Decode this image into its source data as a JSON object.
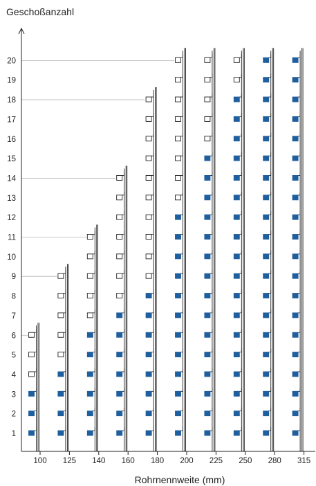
{
  "chart_data": {
    "type": "scatter",
    "ylabel": "Geschoßanzahl",
    "xlabel": "Rohrnennweite (mm)",
    "categories": [
      "100",
      "125",
      "140",
      "160",
      "180",
      "200",
      "225",
      "250",
      "280",
      "315"
    ],
    "y_ticks": [
      "1",
      "2",
      "3",
      "4",
      "5",
      "6",
      "7",
      "8",
      "9",
      "10",
      "11",
      "12",
      "13",
      "14",
      "15",
      "16",
      "17",
      "18",
      "19",
      "20"
    ],
    "ylim": [
      0,
      21
    ],
    "max_floors": [
      6,
      9,
      11,
      14,
      18,
      20,
      20,
      20,
      20,
      20
    ],
    "filled_up_to_floor": [
      3,
      4,
      6,
      7,
      8,
      12,
      15,
      18,
      20,
      20
    ],
    "gridlines_at_floor": [
      6,
      9,
      11,
      14,
      18,
      20
    ],
    "colors": {
      "filled": "#1f5f9e",
      "hollow": "#ffffff",
      "outline": "#222222",
      "grid": "#b5b5b5",
      "axis": "#222222"
    }
  }
}
